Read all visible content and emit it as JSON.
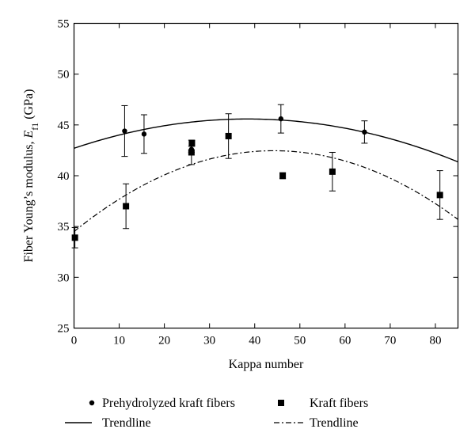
{
  "chart_data": {
    "type": "scatter",
    "xlabel": "Kappa number",
    "ylabel_main": "Fiber Young’s modulus, ",
    "ylabel_symbol": "E",
    "ylabel_subscript": "f1",
    "ylabel_unit": " (GPa)",
    "xlim": [
      0,
      85
    ],
    "ylim": [
      25,
      55
    ],
    "xticks": [
      0,
      10,
      20,
      30,
      40,
      50,
      60,
      70,
      80
    ],
    "yticks": [
      25,
      30,
      35,
      40,
      45,
      50,
      55
    ],
    "grid": false,
    "legend_position": "bottom",
    "series": [
      {
        "name": "Prehydrolyzed kraft fibers",
        "marker": "circle",
        "points": [
          {
            "x": 11.2,
            "y": 44.4,
            "err": 2.5
          },
          {
            "x": 15.5,
            "y": 44.1,
            "err": 1.9
          },
          {
            "x": 26.0,
            "y": 42.6,
            "err": 0.3
          },
          {
            "x": 45.8,
            "y": 45.6,
            "err": 1.4
          },
          {
            "x": 64.3,
            "y": 44.3,
            "err": 1.1
          }
        ]
      },
      {
        "name": "Kraft fibers",
        "marker": "square",
        "points": [
          {
            "x": 0.2,
            "y": 33.9,
            "err": 1.0
          },
          {
            "x": 11.5,
            "y": 37.0,
            "err": 2.2
          },
          {
            "x": 26.0,
            "y": 42.3,
            "err": 1.2
          },
          {
            "x": 26.1,
            "y": 43.2,
            "err": 0.3
          },
          {
            "x": 34.2,
            "y": 43.9,
            "err": 2.2
          },
          {
            "x": 46.2,
            "y": 40.0,
            "err": 0.3
          },
          {
            "x": 57.2,
            "y": 40.4,
            "err": 1.9
          },
          {
            "x": 81.0,
            "y": 38.1,
            "err": 2.4
          }
        ]
      }
    ],
    "trendlines": [
      {
        "name": "Trendline",
        "style": "solid",
        "coeffs": [
          42.7,
          0.15,
          -0.00195
        ]
      },
      {
        "name": "Trendline",
        "style": "dashdot",
        "coeffs": [
          34.5,
          0.36,
          -0.00407
        ]
      }
    ]
  }
}
